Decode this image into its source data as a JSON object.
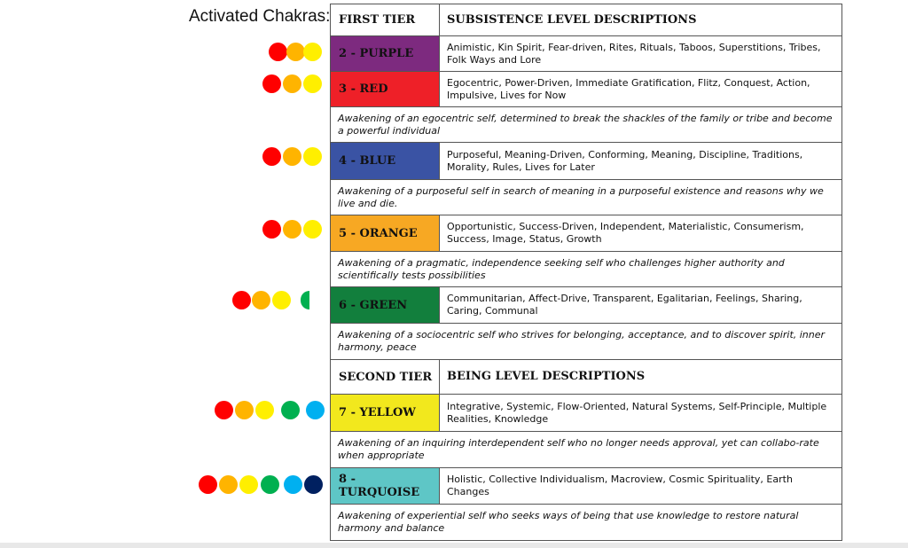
{
  "title": "Activated Chakras:",
  "chakra_colors": {
    "red": "#ff0000",
    "orange": "#ffb400",
    "yellow": "#ffef00",
    "green": "#00b050",
    "blue": "#00b0f0",
    "navy": "#002060"
  },
  "table": {
    "first_tier": {
      "label": "FIRST TIER",
      "heading": "SUBSISTENCE LEVEL DESCRIPTIONS"
    },
    "second_tier": {
      "label": "SECOND TIER",
      "heading": "BEING LEVEL DESCRIPTIONS"
    },
    "levels": [
      {
        "label": "2 - PURPLE",
        "color": "#7d2a7f",
        "traits": "Animistic, Kin Spirit, Fear-driven, Rites, Rituals, Taboos, Superstitions, Tribes, Folk Ways and Lore",
        "awakening": "",
        "chakras": [
          "red",
          "orange",
          "yellow"
        ]
      },
      {
        "label": "3 - RED",
        "color": "#ee2028",
        "traits": "Egocentric, Power-Driven, Immediate Gratification, Flitz, Conquest, Action, Impulsive, Lives for Now",
        "awakening": "Awakening of an egocentric self, determined to break the shackles of the family or tribe and become a powerful individual",
        "chakras": [
          "red",
          "orange",
          "yellow"
        ]
      },
      {
        "label": "4 - BLUE",
        "color": "#3a53a4",
        "traits": "Purposeful, Meaning-Driven, Conforming, Meaning, Discipline, Traditions, Morality, Rules, Lives for Later",
        "awakening": "Awakening of a purposeful self in search of meaning in a purposeful existence and reasons why we live and die.",
        "chakras": [
          "red",
          "orange",
          "yellow"
        ]
      },
      {
        "label": "5 - ORANGE",
        "color": "#f7a823",
        "traits": "Opportunistic, Success-Driven, Independent, Materialistic, Consumerism, Success, Image, Status, Growth",
        "awakening": "Awakening of a pragmatic, independence seeking self who challenges higher authority and scientifically tests possibilities",
        "chakras": [
          "red",
          "orange",
          "yellow"
        ]
      },
      {
        "label": "6 - GREEN",
        "color": "#127f3d",
        "traits": "Communitarian, Affect-Drive, Transparent, Egalitarian, Feelings, Sharing, Caring, Communal",
        "awakening": "Awakening of a sociocentric self who strives for belonging, acceptance, and to discover spirit, inner harmony, peace",
        "chakras": [
          "red",
          "orange",
          "yellow",
          "green-half"
        ]
      },
      {
        "label": "7 - YELLOW",
        "color": "#f2e81d",
        "traits": "Integrative, Systemic, Flow-Oriented, Natural Systems, Self-Principle, Multiple Realities, Knowledge",
        "awakening": "Awakening of an inquiring interdependent self who no longer needs approval, yet can collabo-rate when appropriate",
        "chakras": [
          "red",
          "orange",
          "yellow",
          "green",
          "blue"
        ]
      },
      {
        "label": "8 - TURQUOISE",
        "color": "#5ec6c6",
        "traits": "Holistic, Collective Individualism, Macroview, Cosmic Spirituality, Earth Changes",
        "awakening": "Awakening of experiential self who seeks ways of being that use knowledge to restore natural harmony and balance",
        "chakras": [
          "red",
          "orange",
          "yellow",
          "green",
          "blue",
          "navy"
        ]
      }
    ]
  }
}
